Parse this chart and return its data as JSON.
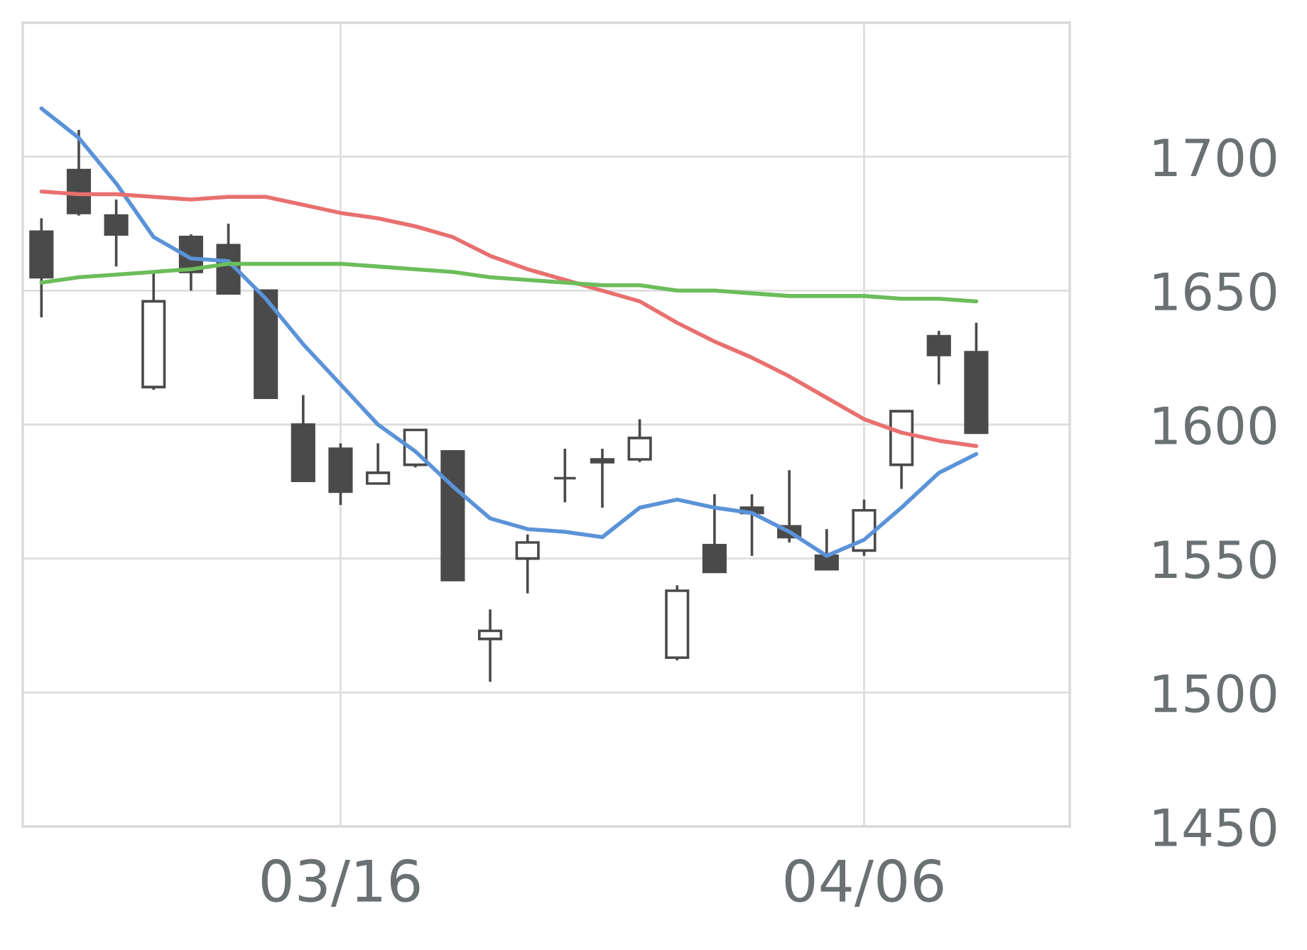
{
  "chart_data": {
    "type": "candlestick",
    "categories": [
      null,
      null,
      null,
      null,
      null,
      null,
      null,
      null,
      "03/16",
      null,
      null,
      null,
      null,
      null,
      null,
      null,
      null,
      null,
      null,
      null,
      null,
      null,
      "04/06",
      null,
      null,
      null
    ],
    "ohlc": [
      [
        1672,
        1677,
        1640,
        1655
      ],
      [
        1695,
        1710,
        1678,
        1679
      ],
      [
        1678,
        1684,
        1659,
        1671
      ],
      [
        1614,
        1657,
        1613,
        1646
      ],
      [
        1670,
        1671,
        1650,
        1657
      ],
      [
        1667,
        1675,
        1649,
        1649
      ],
      [
        1650,
        1650,
        1610,
        1610
      ],
      [
        1600,
        1611,
        1579,
        1579
      ],
      [
        1591,
        1593,
        1570,
        1575
      ],
      [
        1578,
        1593,
        1578,
        1582
      ],
      [
        1585,
        1598,
        1584,
        1598
      ],
      [
        1590,
        1590,
        1542,
        1542
      ],
      [
        1520,
        1531,
        1504,
        1523
      ],
      [
        1550,
        1559,
        1537,
        1556
      ],
      [
        1580,
        1591,
        1571,
        1580
      ],
      [
        1587,
        1591,
        1569,
        1586
      ],
      [
        1587,
        1602,
        1586,
        1595
      ],
      [
        1513,
        1540,
        1512,
        1538
      ],
      [
        1555,
        1574,
        1545,
        1545
      ],
      [
        1569,
        1574,
        1551,
        1567
      ],
      [
        1562,
        1583,
        1556,
        1558
      ],
      [
        1551,
        1561,
        1546,
        1546
      ],
      [
        1553,
        1572,
        1551,
        1568
      ],
      [
        1585,
        1605,
        1576,
        1605
      ],
      [
        1633,
        1635,
        1615,
        1626
      ],
      [
        1627,
        1638,
        1597,
        1597
      ]
    ],
    "color": "#4a4a4a",
    "series": [
      {
        "type": "line",
        "color": "#5b93d8",
        "values": [
          1718,
          1707,
          1690,
          1670,
          1662,
          1661,
          1647,
          1630,
          1615,
          1600,
          1590,
          1577,
          1565,
          1561,
          1560,
          1558,
          1569,
          1572,
          1569,
          1567,
          1560,
          1551,
          1557,
          1569,
          1582,
          1589
        ]
      },
      {
        "type": "line",
        "color": "#e8706f",
        "values": [
          1687,
          1686,
          1686,
          1685,
          1684,
          1685,
          1685,
          1682,
          1679,
          1677,
          1674,
          1670,
          1663,
          1658,
          1654,
          1650,
          1646,
          1638,
          1631,
          1625,
          1618,
          1610,
          1602,
          1597,
          1594,
          1592
        ]
      },
      {
        "type": "line",
        "color": "#6cbd5b",
        "values": [
          1653,
          1655,
          1656,
          1657,
          1658,
          1660,
          1660,
          1660,
          1660,
          1659,
          1658,
          1657,
          1655,
          1654,
          1653,
          1652,
          1652,
          1650,
          1650,
          1649,
          1648,
          1648,
          1648,
          1647,
          1647,
          1646
        ]
      }
    ],
    "ylim": [
      1450,
      1750
    ],
    "yticks": [
      1450,
      1500,
      1550,
      1600,
      1650,
      1700
    ],
    "grid": true
  }
}
